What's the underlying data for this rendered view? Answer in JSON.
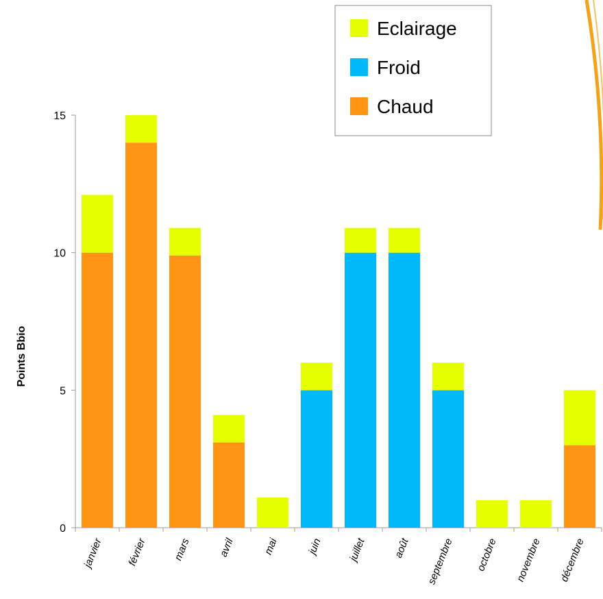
{
  "chart_data": {
    "type": "stacked_bar",
    "y_label": "Points Bbio",
    "categories": [
      "janvier",
      "février",
      "mars",
      "avril",
      "mai",
      "juin",
      "juillet",
      "août",
      "septembre",
      "octobre",
      "novembre",
      "décembre"
    ],
    "series": [
      {
        "name": "Chaud",
        "color": "#ff9414",
        "values": [
          10,
          14,
          9.9,
          3.1,
          0,
          0,
          0,
          0,
          0,
          0,
          0,
          3
        ]
      },
      {
        "name": "Froid",
        "color": "#00b9fa",
        "values": [
          0,
          0,
          0,
          0,
          0,
          5,
          10,
          10,
          5,
          0,
          0,
          0
        ]
      },
      {
        "name": "Eclairage",
        "color": "#e5ff00",
        "values": [
          2.1,
          1,
          1,
          1,
          1.1,
          1,
          0.9,
          0.9,
          1,
          1,
          1,
          2
        ]
      }
    ],
    "ylim": [
      0,
      15
    ],
    "yticks": [
      0,
      5,
      10,
      15
    ]
  }
}
